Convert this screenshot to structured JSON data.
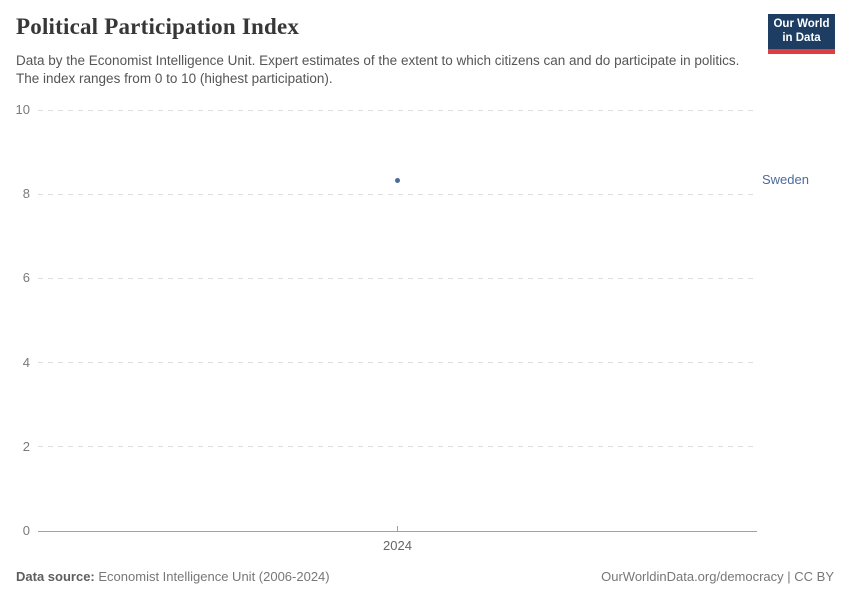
{
  "header": {
    "title": "Political Participation Index",
    "subtitle": "Data by the Economist Intelligence Unit. Expert estimates of the extent to which citizens can and do participate in politics. The index ranges from 0 to 10 (highest participation).",
    "logo": {
      "line1": "Our World",
      "line2": "in Data"
    }
  },
  "colors": {
    "logo_navy": "#1d3d63",
    "logo_red": "#dc3e43",
    "series_blue": "#4c6a9c",
    "gridline": "#dedede",
    "axis": "#a1a1a1"
  },
  "chart_data": {
    "type": "scatter",
    "title": "Political Participation Index",
    "x": [
      2024
    ],
    "series": [
      {
        "name": "Sweden",
        "values": [
          8.33
        ],
        "color": "#4c6a9c"
      }
    ],
    "xlabel": "",
    "ylabel": "",
    "ylim": [
      0,
      10
    ],
    "yticks": [
      0,
      2,
      4,
      6,
      8,
      10
    ],
    "xticks": [
      2024
    ],
    "grid": "horizontal-dashed",
    "legend": "entity-label-right"
  },
  "footer": {
    "source_label": "Data source:",
    "source_text": "Economist Intelligence Unit (2006-2024)",
    "link_text": "OurWorldinData.org/democracy | CC BY"
  }
}
